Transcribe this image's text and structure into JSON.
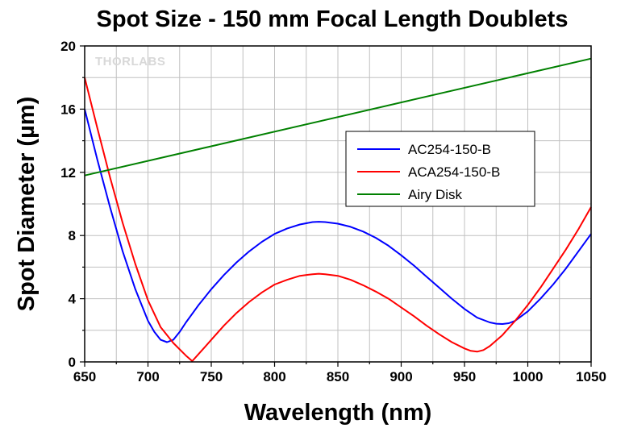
{
  "chart_data": {
    "type": "line",
    "title": "Spot Size - 150 mm Focal Length Doublets",
    "xlabel": "Wavelength (nm)",
    "ylabel": "Spot Diameter (µm)",
    "xlim": [
      650,
      1050
    ],
    "ylim": [
      0,
      20
    ],
    "xticks": [
      650,
      700,
      750,
      800,
      850,
      900,
      950,
      1000,
      1050
    ],
    "yticks": [
      0,
      4,
      8,
      12,
      16,
      20
    ],
    "grid": true,
    "legend_position": "right-center",
    "watermark": "THORLABS",
    "series": [
      {
        "name": "AC254-150-B",
        "color": "#0000ff",
        "x": [
          650,
          660,
          670,
          680,
          690,
          700,
          705,
          710,
          715,
          720,
          725,
          730,
          740,
          750,
          760,
          770,
          780,
          790,
          800,
          810,
          820,
          830,
          835,
          840,
          850,
          860,
          870,
          880,
          890,
          900,
          910,
          920,
          930,
          940,
          950,
          960,
          970,
          975,
          980,
          985,
          990,
          1000,
          1010,
          1020,
          1030,
          1040,
          1050
        ],
        "y": [
          16.0,
          12.8,
          9.8,
          7.0,
          4.6,
          2.6,
          1.9,
          1.4,
          1.25,
          1.4,
          1.9,
          2.5,
          3.6,
          4.6,
          5.5,
          6.3,
          7.0,
          7.6,
          8.1,
          8.45,
          8.7,
          8.85,
          8.87,
          8.85,
          8.75,
          8.55,
          8.25,
          7.85,
          7.35,
          6.75,
          6.1,
          5.4,
          4.7,
          4.0,
          3.35,
          2.8,
          2.5,
          2.42,
          2.4,
          2.45,
          2.6,
          3.2,
          4.0,
          4.9,
          5.9,
          7.0,
          8.1
        ]
      },
      {
        "name": "ACA254-150-B",
        "color": "#ff0000",
        "x": [
          650,
          660,
          670,
          680,
          690,
          700,
          710,
          720,
          730,
          735,
          740,
          750,
          760,
          770,
          780,
          790,
          800,
          810,
          820,
          830,
          835,
          840,
          850,
          860,
          870,
          880,
          890,
          900,
          910,
          920,
          930,
          940,
          950,
          955,
          960,
          965,
          970,
          980,
          990,
          1000,
          1010,
          1020,
          1030,
          1040,
          1050
        ],
        "y": [
          18.0,
          14.8,
          11.7,
          8.8,
          6.2,
          3.9,
          2.2,
          1.2,
          0.4,
          0.05,
          0.5,
          1.4,
          2.3,
          3.1,
          3.8,
          4.4,
          4.9,
          5.2,
          5.45,
          5.55,
          5.58,
          5.55,
          5.45,
          5.2,
          4.85,
          4.45,
          4.0,
          3.45,
          2.9,
          2.3,
          1.75,
          1.25,
          0.85,
          0.7,
          0.65,
          0.75,
          1.0,
          1.7,
          2.6,
          3.6,
          4.7,
          5.9,
          7.1,
          8.4,
          9.8
        ]
      },
      {
        "name": "Airy Disk",
        "color": "#008000",
        "x": [
          650,
          1050
        ],
        "y": [
          11.8,
          19.2
        ]
      }
    ]
  }
}
